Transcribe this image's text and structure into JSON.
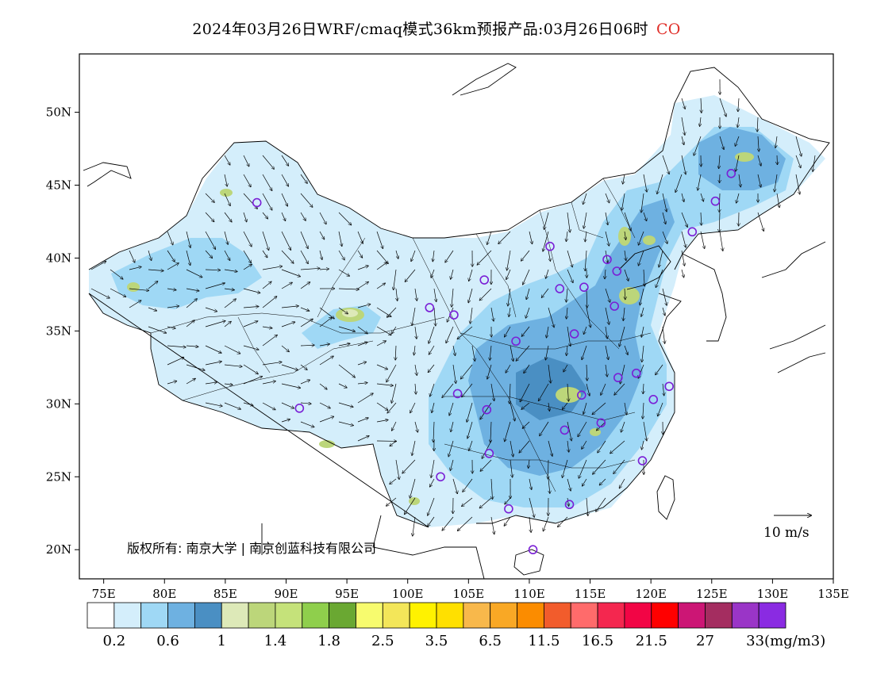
{
  "title": {
    "main": "2024年03月26日WRF/cmaq模式36km预报产品:03月26日06时",
    "species": "CO",
    "species_color": "#e0302a"
  },
  "axes": {
    "lon_labels": [
      "75E",
      "80E",
      "85E",
      "90E",
      "95E",
      "100E",
      "105E",
      "110E",
      "115E",
      "120E",
      "125E",
      "130E",
      "135E"
    ],
    "lat_labels": [
      "50N",
      "45N",
      "40N",
      "35N",
      "30N",
      "25N",
      "20N"
    ],
    "lon_range": [
      73,
      135
    ],
    "lat_range": [
      18,
      54
    ]
  },
  "copyright": {
    "line": "版权所有: 南京大学 | 南京创蓝科技有限公司"
  },
  "wind_reference": {
    "label": "10 m/s"
  },
  "legend": {
    "colors": [
      "#ffffff",
      "#d4eefb",
      "#9fd8f5",
      "#6eb1e1",
      "#4a8fc3",
      "#dde9b8",
      "#bcd67a",
      "#c5e27a",
      "#8fcf4c",
      "#6aa832",
      "#f7fb6e",
      "#f3e659",
      "#fff200",
      "#ffe000",
      "#f8b84b",
      "#f9a825",
      "#fb8c00",
      "#f25c2c",
      "#ff6b6b",
      "#f4274f",
      "#f20545",
      "#ff0000",
      "#cc1675",
      "#a42d60",
      "#9a35c7",
      "#8a2be2"
    ],
    "labels": [
      "0.2",
      "0.6",
      "1",
      "1.4",
      "1.8",
      "2.5",
      "3.5",
      "6.5",
      "11.5",
      "16.5",
      "21.5",
      "27",
      "33(mg/m3)"
    ]
  },
  "stations": [
    [
      87.6,
      43.8
    ],
    [
      91.1,
      29.7
    ],
    [
      101.8,
      36.6
    ],
    [
      103.8,
      36.1
    ],
    [
      106.3,
      38.5
    ],
    [
      111.7,
      40.8
    ],
    [
      112.5,
      37.9
    ],
    [
      114.5,
      38.0
    ],
    [
      116.4,
      39.9
    ],
    [
      117.2,
      39.1
    ],
    [
      117.0,
      36.7
    ],
    [
      113.7,
      34.8
    ],
    [
      108.9,
      34.3
    ],
    [
      104.1,
      30.7
    ],
    [
      106.5,
      29.6
    ],
    [
      106.7,
      26.6
    ],
    [
      102.7,
      25.0
    ],
    [
      108.3,
      22.8
    ],
    [
      113.3,
      23.1
    ],
    [
      110.3,
      20.0
    ],
    [
      114.3,
      30.6
    ],
    [
      112.9,
      28.2
    ],
    [
      115.9,
      28.7
    ],
    [
      119.3,
      26.1
    ],
    [
      120.2,
      30.3
    ],
    [
      121.5,
      31.2
    ],
    [
      118.8,
      32.1
    ],
    [
      117.3,
      31.8
    ],
    [
      123.4,
      41.8
    ],
    [
      125.3,
      43.9
    ],
    [
      126.6,
      45.8
    ]
  ]
}
